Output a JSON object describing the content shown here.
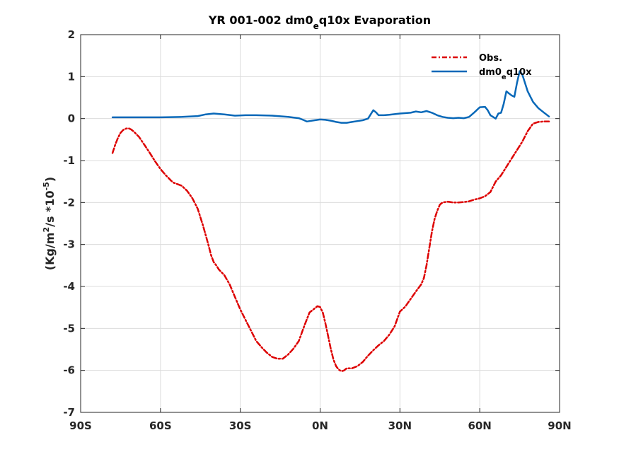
{
  "chart_data": {
    "type": "line",
    "title": {
      "main": "YR 001-002 dm0",
      "sub": "e",
      "rest": "q10x Evaporation"
    },
    "ylabel": {
      "pre": "(Kg/m",
      "sup1": "2",
      "mid": "/s *10",
      "sup2": "-5",
      "post": ")"
    },
    "xlim": [
      -90,
      90
    ],
    "ylim": [
      -7,
      2
    ],
    "x_ticks": [
      {
        "value": -90,
        "label": "90S"
      },
      {
        "value": -60,
        "label": "60S"
      },
      {
        "value": -30,
        "label": "30S"
      },
      {
        "value": 0,
        "label": "0N"
      },
      {
        "value": 30,
        "label": "30N"
      },
      {
        "value": 60,
        "label": "60N"
      },
      {
        "value": 90,
        "label": "90N"
      }
    ],
    "y_ticks": [
      {
        "value": 2,
        "label": "2"
      },
      {
        "value": 1,
        "label": "1"
      },
      {
        "value": 0,
        "label": "0"
      },
      {
        "value": -1,
        "label": "-1"
      },
      {
        "value": -2,
        "label": "-2"
      },
      {
        "value": -3,
        "label": "-3"
      },
      {
        "value": -4,
        "label": "-4"
      },
      {
        "value": -5,
        "label": "-5"
      },
      {
        "value": -6,
        "label": "-6"
      },
      {
        "value": -7,
        "label": "-7"
      }
    ],
    "grid": true,
    "legend_position": "top-right",
    "series": [
      {
        "name": "Obs.",
        "color": "#dd0000",
        "style": "dashed",
        "x": [
          -78,
          -77,
          -76,
          -75,
          -74,
          -73,
          -72,
          -71,
          -70,
          -68,
          -66,
          -64,
          -62,
          -60,
          -58,
          -56,
          -55,
          -52,
          -50,
          -48,
          -46,
          -44,
          -42,
          -41,
          -40,
          -39,
          -38,
          -36,
          -34,
          -32,
          -30,
          -28,
          -26,
          -24,
          -22,
          -20,
          -18,
          -16,
          -14,
          -12,
          -10,
          -8,
          -6,
          -4,
          -2,
          -1,
          0,
          1,
          2,
          3,
          4,
          5,
          6,
          7,
          8,
          9,
          10,
          12,
          14,
          16,
          18,
          20,
          22,
          24,
          26,
          28,
          30,
          32,
          34,
          36,
          38,
          39,
          40,
          41,
          42,
          43,
          44,
          45,
          46,
          48,
          50,
          52,
          54,
          56,
          58,
          60,
          62,
          64,
          66,
          68,
          70,
          72,
          74,
          76,
          78,
          80,
          82,
          84,
          86
        ],
        "y": [
          -0.82,
          -0.62,
          -0.46,
          -0.34,
          -0.27,
          -0.24,
          -0.23,
          -0.26,
          -0.31,
          -0.44,
          -0.63,
          -0.82,
          -1.02,
          -1.2,
          -1.35,
          -1.48,
          -1.53,
          -1.6,
          -1.72,
          -1.9,
          -2.15,
          -2.55,
          -3.0,
          -3.25,
          -3.42,
          -3.5,
          -3.6,
          -3.73,
          -3.95,
          -4.25,
          -4.55,
          -4.8,
          -5.05,
          -5.3,
          -5.45,
          -5.58,
          -5.68,
          -5.72,
          -5.72,
          -5.62,
          -5.48,
          -5.3,
          -4.95,
          -4.62,
          -4.52,
          -4.47,
          -4.49,
          -4.62,
          -4.88,
          -5.18,
          -5.48,
          -5.74,
          -5.9,
          -5.98,
          -6.02,
          -6.0,
          -5.95,
          -5.95,
          -5.9,
          -5.8,
          -5.65,
          -5.52,
          -5.4,
          -5.3,
          -5.15,
          -4.95,
          -4.6,
          -4.48,
          -4.3,
          -4.12,
          -3.95,
          -3.8,
          -3.5,
          -3.1,
          -2.7,
          -2.4,
          -2.2,
          -2.05,
          -2.0,
          -1.98,
          -2.0,
          -2.0,
          -1.99,
          -1.97,
          -1.93,
          -1.9,
          -1.85,
          -1.75,
          -1.5,
          -1.35,
          -1.15,
          -0.95,
          -0.75,
          -0.55,
          -0.3,
          -0.12,
          -0.08,
          -0.07,
          -0.07
        ]
      },
      {
        "name": "dm0eq10x",
        "legend_label": {
          "main": "dm0",
          "sub": "e",
          "rest": "q10x"
        },
        "color": "#0868b8",
        "style": "solid",
        "x": [
          -78,
          -70,
          -60,
          -52,
          -46,
          -43,
          -40,
          -36,
          -32,
          -28,
          -24,
          -18,
          -12,
          -8,
          -6,
          -5,
          -4,
          -2,
          0,
          2,
          4,
          6,
          8,
          10,
          12,
          14,
          16,
          18,
          19,
          20,
          21,
          22,
          24,
          26,
          30,
          34,
          36,
          38,
          40,
          42,
          44,
          46,
          48,
          50,
          52,
          54,
          56,
          58,
          60,
          62,
          63,
          64,
          66,
          67,
          68,
          69,
          70,
          71,
          72,
          73,
          74,
          75,
          76,
          78,
          80,
          82,
          84,
          86
        ],
        "y": [
          0.03,
          0.03,
          0.03,
          0.04,
          0.06,
          0.1,
          0.12,
          0.1,
          0.07,
          0.08,
          0.08,
          0.07,
          0.04,
          0.01,
          -0.04,
          -0.07,
          -0.06,
          -0.04,
          -0.02,
          -0.03,
          -0.05,
          -0.08,
          -0.1,
          -0.1,
          -0.08,
          -0.06,
          -0.04,
          0.0,
          0.1,
          0.2,
          0.15,
          0.08,
          0.08,
          0.09,
          0.12,
          0.14,
          0.17,
          0.15,
          0.18,
          0.14,
          0.08,
          0.04,
          0.02,
          0.01,
          0.02,
          0.01,
          0.04,
          0.15,
          0.27,
          0.28,
          0.2,
          0.08,
          0.0,
          0.12,
          0.14,
          0.35,
          0.65,
          0.6,
          0.55,
          0.52,
          0.85,
          1.13,
          1.05,
          0.65,
          0.4,
          0.25,
          0.15,
          0.05
        ]
      }
    ]
  }
}
